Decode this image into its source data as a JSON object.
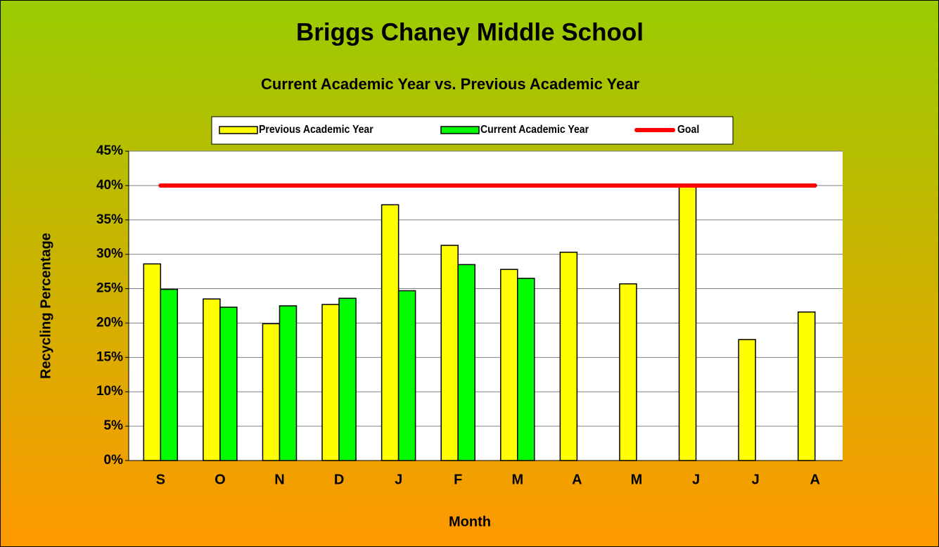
{
  "chart_data": {
    "type": "bar",
    "title": "Briggs Chaney Middle School",
    "subtitle": "Current Academic Year vs. Previous Academic Year",
    "x_label": "Month",
    "y_label": "Recycling Percentage",
    "categories": [
      "S",
      "O",
      "N",
      "D",
      "J",
      "F",
      "M",
      "A",
      "M",
      "J",
      "J",
      "A"
    ],
    "series": [
      {
        "name": "Previous Academic Year",
        "type": "bar",
        "color": "#ffff00",
        "values": [
          28.6,
          23.5,
          19.9,
          22.7,
          37.2,
          31.3,
          27.8,
          30.3,
          25.7,
          40.0,
          17.6,
          21.6
        ]
      },
      {
        "name": "Current Academic Year",
        "type": "bar",
        "color": "#00ff00",
        "values": [
          24.9,
          22.3,
          22.5,
          23.6,
          24.7,
          28.5,
          26.5,
          null,
          null,
          null,
          null,
          null
        ]
      },
      {
        "name": "Goal",
        "type": "line",
        "color": "#ff0000",
        "values": [
          40,
          40,
          40,
          40,
          40,
          40,
          40,
          40,
          40,
          40,
          40,
          40
        ]
      }
    ],
    "ylim": [
      0,
      45
    ],
    "yticks": [
      {
        "value": 0,
        "label": "0%"
      },
      {
        "value": 5,
        "label": "5%"
      },
      {
        "value": 10,
        "label": "10%"
      },
      {
        "value": 15,
        "label": "15%"
      },
      {
        "value": 20,
        "label": "20%"
      },
      {
        "value": 25,
        "label": "25%"
      },
      {
        "value": 30,
        "label": "30%"
      },
      {
        "value": 35,
        "label": "35%"
      },
      {
        "value": 40,
        "label": "40%"
      },
      {
        "value": 45,
        "label": "45%"
      }
    ],
    "grid": true,
    "legend": "top"
  }
}
